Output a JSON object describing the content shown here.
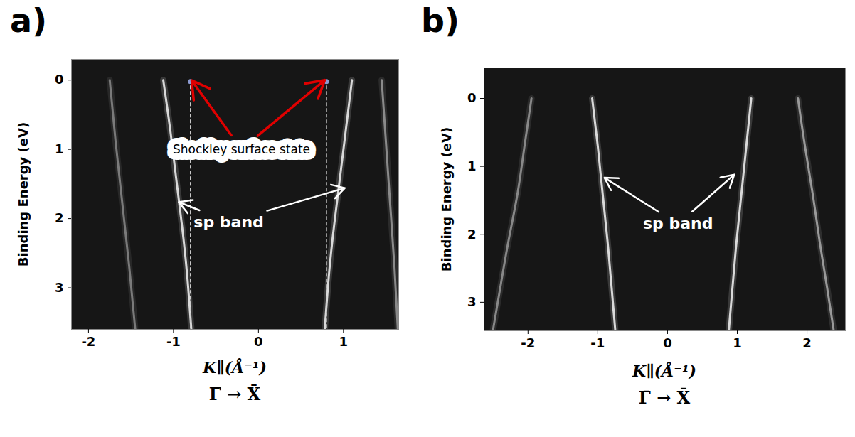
{
  "chart_data": [
    {
      "type": "line",
      "title": "a)",
      "ylabel": "Binding Energy (eV)",
      "xlabel": "K∥(Å⁻¹)",
      "xlabel_sub": "Γ̄ → X̄",
      "xlim": [
        -2.2,
        1.65
      ],
      "xticks": [
        -2,
        -1,
        0,
        1
      ],
      "ylim": [
        -0.3,
        3.6
      ],
      "yticks": [
        0,
        1,
        2,
        3
      ],
      "series": [
        {
          "type": "line",
          "color": "#d9d9d9",
          "line_style": "solid",
          "x": [
            -1.12,
            -1.04,
            -0.97,
            -0.9,
            -0.84,
            -0.79
          ],
          "values": [
            0,
            0.7,
            1.4,
            2.1,
            2.8,
            3.6
          ]
        },
        {
          "type": "line",
          "color": "#d9d9d9",
          "line_style": "solid",
          "x": [
            1.1,
            1.03,
            0.96,
            0.89,
            0.83,
            0.78
          ],
          "values": [
            0,
            0.7,
            1.4,
            2.1,
            2.8,
            3.6
          ]
        },
        {
          "type": "line",
          "color": "#7a7a7a",
          "line_style": "solid",
          "x": [
            -1.75,
            -1.68,
            -1.6,
            -1.52,
            -1.45
          ],
          "values": [
            0,
            0.9,
            1.8,
            2.7,
            3.6
          ]
        },
        {
          "type": "line",
          "color": "#8a8a8a",
          "line_style": "solid",
          "x": [
            1.45,
            1.5,
            1.55,
            1.6,
            1.64
          ],
          "values": [
            0,
            0.9,
            1.8,
            2.7,
            3.6
          ]
        },
        {
          "type": "line",
          "color": "#cccccc",
          "line_style": "dashed",
          "x": [
            -0.8,
            -0.8
          ],
          "values": [
            0,
            3.6
          ]
        },
        {
          "type": "line",
          "color": "#cccccc",
          "line_style": "dashed",
          "x": [
            0.8,
            0.8
          ],
          "values": [
            0,
            3.6
          ]
        },
        {
          "type": "scatter",
          "color": "#8c9ad0",
          "marker": "circle",
          "x": [
            -0.8,
            0.8
          ],
          "values": [
            0.02,
            0.02
          ]
        }
      ],
      "annotations": [
        {
          "text": "Shockley surface state",
          "x": -0.2,
          "y": 1.0,
          "text_color": "#000000",
          "color": "#e00000",
          "targets": [
            [
              -0.8,
              -0.02
            ],
            [
              0.8,
              -0.02
            ]
          ]
        },
        {
          "text": "sp band",
          "x": -0.35,
          "y": 2.05,
          "text_color": "#ffffff",
          "color": "#ffffff",
          "targets": [
            [
              -0.96,
              1.75
            ],
            [
              1.04,
              1.55
            ]
          ]
        }
      ]
    },
    {
      "type": "line",
      "title": "b)",
      "ylabel": "Binding Energy (eV)",
      "xlabel": "K∥(Å⁻¹)",
      "xlabel_sub": "Γ̄ → X̄",
      "xlim": [
        -2.63,
        2.55
      ],
      "xticks": [
        -2,
        -1,
        0,
        1,
        2
      ],
      "ylim": [
        -0.45,
        3.42
      ],
      "yticks": [
        0,
        1,
        2,
        3
      ],
      "series": [
        {
          "type": "line",
          "color": "#d9d9d9",
          "line_style": "solid",
          "x": [
            -1.08,
            -1.0,
            -0.93,
            -0.86,
            -0.8,
            -0.75
          ],
          "values": [
            0,
            0.7,
            1.4,
            2.1,
            2.8,
            3.4
          ]
        },
        {
          "type": "line",
          "color": "#d9d9d9",
          "line_style": "solid",
          "x": [
            1.2,
            1.13,
            1.06,
            0.99,
            0.93,
            0.88
          ],
          "values": [
            0,
            0.7,
            1.4,
            2.1,
            2.8,
            3.4
          ]
        },
        {
          "type": "line",
          "color": "#999999",
          "line_style": "solid",
          "x": [
            1.87,
            1.97,
            2.08,
            2.18,
            2.29,
            2.38
          ],
          "values": [
            0,
            0.7,
            1.4,
            2.1,
            2.8,
            3.4
          ]
        },
        {
          "type": "line",
          "color": "#888888",
          "line_style": "solid",
          "x": [
            -1.95,
            -2.05,
            -2.15,
            -2.28,
            -2.4,
            -2.5
          ],
          "values": [
            0,
            0.7,
            1.4,
            2.1,
            2.8,
            3.4
          ]
        }
      ],
      "annotations": [
        {
          "text": "sp band",
          "x": 0.15,
          "y": 1.85,
          "text_color": "#ffffff",
          "color": "#ffffff",
          "targets": [
            [
              -0.93,
              1.15
            ],
            [
              0.98,
              1.1
            ]
          ]
        }
      ]
    }
  ]
}
